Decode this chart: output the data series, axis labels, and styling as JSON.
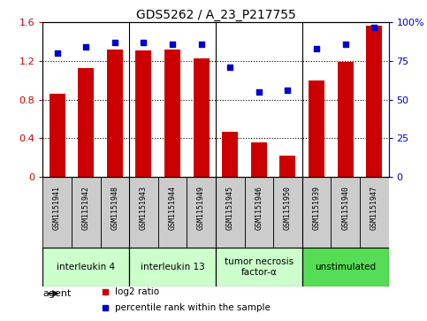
{
  "title": "GDS5262 / A_23_P217755",
  "samples": [
    "GSM1151941",
    "GSM1151942",
    "GSM1151948",
    "GSM1151943",
    "GSM1151944",
    "GSM1151949",
    "GSM1151945",
    "GSM1151946",
    "GSM1151950",
    "GSM1151939",
    "GSM1151940",
    "GSM1151947"
  ],
  "log2_ratio": [
    0.86,
    1.13,
    1.32,
    1.31,
    1.32,
    1.23,
    0.47,
    0.36,
    0.22,
    1.0,
    1.19,
    1.57
  ],
  "percentile_rank": [
    80,
    84,
    87,
    87,
    86,
    86,
    71,
    55,
    56,
    83,
    86,
    97
  ],
  "groups": [
    {
      "label": "interleukin 4",
      "start": 0,
      "end": 3,
      "color": "#ccffcc"
    },
    {
      "label": "interleukin 13",
      "start": 3,
      "end": 6,
      "color": "#ccffcc"
    },
    {
      "label": "tumor necrosis\nfactor-α",
      "start": 6,
      "end": 9,
      "color": "#ccffcc"
    },
    {
      "label": "unstimulated",
      "start": 9,
      "end": 12,
      "color": "#55dd55"
    }
  ],
  "bar_color": "#cc0000",
  "dot_color": "#0000cc",
  "ylim_left": [
    0,
    1.6
  ],
  "ylim_right": [
    0,
    100
  ],
  "yticks_left": [
    0,
    0.4,
    0.8,
    1.2,
    1.6
  ],
  "yticks_right": [
    0,
    25,
    50,
    75,
    100
  ],
  "sample_box_color": "#cccccc",
  "plot_bg_color": "#ffffff",
  "fig_bg_color": "#ffffff",
  "legend_bar_label": "log2 ratio",
  "legend_dot_label": "percentile rank within the sample",
  "agent_label": "agent",
  "title_fontsize": 10,
  "tick_fontsize": 8,
  "label_fontsize": 7.5,
  "legend_fontsize": 7.5
}
